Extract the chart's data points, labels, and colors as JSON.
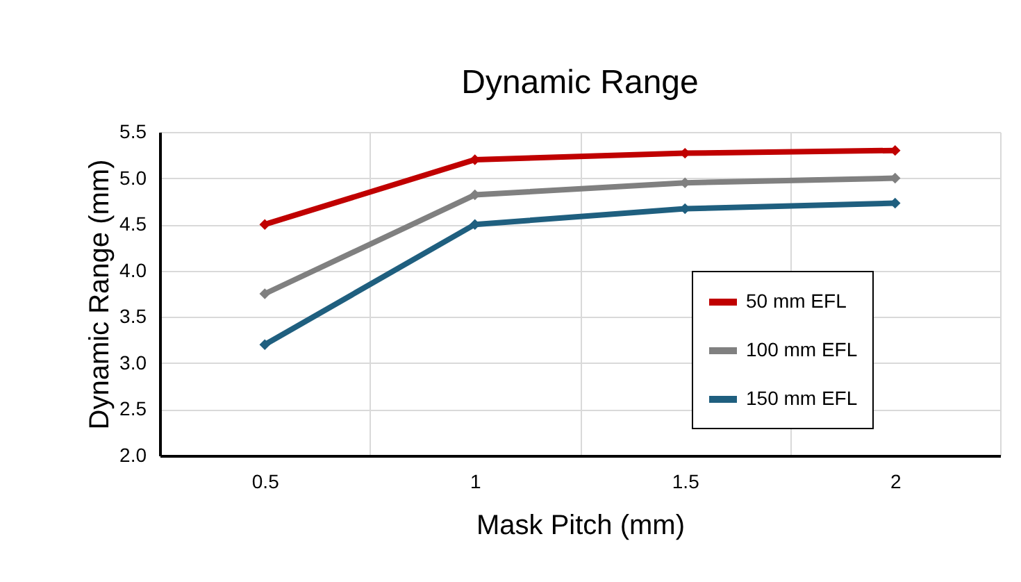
{
  "chart_data": {
    "type": "line",
    "title": "Dynamic Range",
    "xlabel": "Mask Pitch (mm)",
    "ylabel": "Dynamic Range (mm)",
    "categories": [
      "0.5",
      "1",
      "1.5",
      "2"
    ],
    "series": [
      {
        "name": "50 mm EFL",
        "color": "#c00000",
        "values": [
          4.5,
          5.2,
          5.27,
          5.3
        ]
      },
      {
        "name": "100 mm EFL",
        "color": "#808080",
        "values": [
          3.75,
          4.82,
          4.95,
          5.0
        ]
      },
      {
        "name": "150 mm EFL",
        "color": "#1f5f7f",
        "values": [
          3.2,
          4.5,
          4.67,
          4.73
        ]
      }
    ],
    "ylim": [
      2.0,
      5.5
    ],
    "yticks": [
      {
        "value": 2,
        "label": "2.0"
      },
      {
        "value": 2.5,
        "label": "2.5"
      },
      {
        "value": 3,
        "label": "3.0"
      },
      {
        "value": 3.5,
        "label": "3.5"
      },
      {
        "value": 4,
        "label": "4.0"
      },
      {
        "value": 4.5,
        "label": "4.5"
      },
      {
        "value": 5,
        "label": "5.0"
      },
      {
        "value": 5.5,
        "label": "5.5"
      }
    ],
    "grid": true,
    "legend": "bottom right",
    "marker": "diamond",
    "line_style": "solid"
  }
}
